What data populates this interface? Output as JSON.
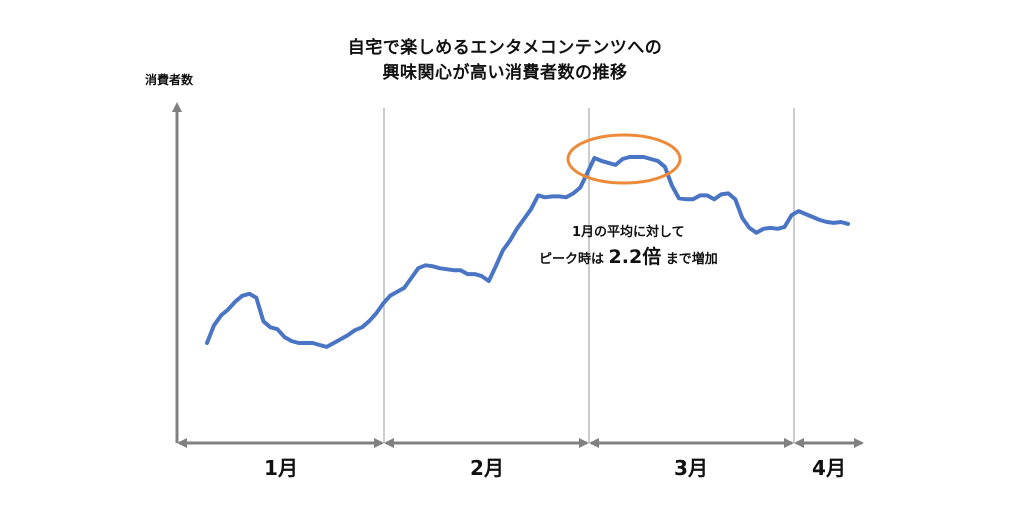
{
  "chart_data": {
    "type": "line",
    "title_lines": [
      "自宅で楽しめるエンタメコンテンツへの",
      "興味関心が高い消費者数の推移"
    ],
    "ylabel": "消費者数",
    "xlabel": "",
    "months": [
      "1月",
      "2月",
      "3月",
      "4月"
    ],
    "annotation": {
      "line1": "1月の平均に対して",
      "line2_prefix": "ピーク時は",
      "line2_emph": "2.2倍",
      "line2_suffix": "まで増加"
    },
    "colors": {
      "line": "#4a74c4",
      "highlight": "#ed8a3a",
      "axis": "#808080",
      "divider": "#9a9a9a"
    },
    "series": [
      {
        "values": [
          102,
          120,
          130,
          136,
          144,
          150,
          152,
          148,
          124,
          118,
          116,
          108,
          104,
          102,
          102,
          102,
          100,
          98,
          102,
          106,
          110,
          115,
          118,
          124,
          132,
          142,
          150,
          154,
          158,
          168,
          178,
          181,
          180,
          178,
          177,
          176,
          176,
          172,
          172,
          170,
          165,
          180,
          196,
          206,
          218,
          228,
          238,
          252,
          250,
          251,
          251,
          250,
          254,
          260,
          275,
          290,
          287,
          285,
          283,
          289,
          291,
          291,
          291,
          289,
          287,
          281,
          262,
          249,
          248,
          248,
          252,
          252,
          248,
          253,
          254,
          248,
          229,
          219,
          214,
          218,
          219,
          218,
          220,
          232,
          236,
          233,
          230,
          227,
          225,
          224,
          225,
          223
        ]
      }
    ]
  }
}
